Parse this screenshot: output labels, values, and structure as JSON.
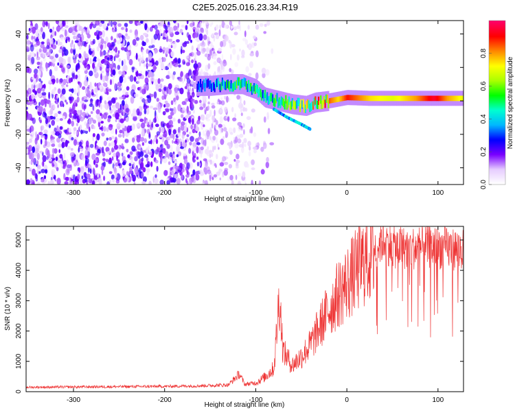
{
  "title": "C2E5.2025.016.23.34.R19",
  "chart_data": [
    {
      "type": "heatmap",
      "title": "C2E5.2025.016.23.34.R19",
      "xlabel": "Height of straight line (km)",
      "ylabel": "Frequency (Hz)",
      "xlim": [
        -352,
        128
      ],
      "ylim": [
        -50,
        48
      ],
      "x_ticks": [
        -300,
        -200,
        -100,
        0,
        100
      ],
      "y_ticks": [
        -40,
        -20,
        0,
        20,
        40
      ],
      "grid": false,
      "colorbar": {
        "label": "Normalized spectral amplitude",
        "range": [
          0,
          1
        ],
        "ticks": [
          0.0,
          0.2,
          0.4,
          0.6,
          0.8
        ],
        "colormap": [
          "#ffffff",
          "#e6ccff",
          "#7a00ff",
          "#0000ff",
          "#00b7ff",
          "#00ffd0",
          "#00ff00",
          "#aaff00",
          "#ffff00",
          "#ff8800",
          "#ff0000",
          "#ff0066"
        ]
      },
      "features": {
        "noise_region_x": [
          -352,
          -100
        ],
        "trace_points": [
          {
            "x": -165,
            "y": 9,
            "v": 0.3
          },
          {
            "x": -150,
            "y": 9,
            "v": 0.35
          },
          {
            "x": -130,
            "y": 10,
            "v": 0.45
          },
          {
            "x": -115,
            "y": 10,
            "v": 0.5
          },
          {
            "x": -100,
            "y": 7,
            "v": 0.45
          },
          {
            "x": -90,
            "y": 2,
            "v": 0.4
          },
          {
            "x": -75,
            "y": 0,
            "v": 0.5
          },
          {
            "x": -60,
            "y": -2,
            "v": 0.55
          },
          {
            "x": -45,
            "y": -3,
            "v": 0.6
          },
          {
            "x": -35,
            "y": -1,
            "v": 0.7
          },
          {
            "x": -20,
            "y": 0,
            "v": 0.85
          },
          {
            "x": -10,
            "y": 1,
            "v": 0.75
          },
          {
            "x": 0,
            "y": 2,
            "v": 0.9
          },
          {
            "x": 25,
            "y": 1.5,
            "v": 0.75
          },
          {
            "x": 50,
            "y": 1.5,
            "v": 0.7
          },
          {
            "x": 75,
            "y": 1.5,
            "v": 0.8
          },
          {
            "x": 95,
            "y": 1.5,
            "v": 0.95
          },
          {
            "x": 110,
            "y": 1.5,
            "v": 0.8
          },
          {
            "x": 128,
            "y": 1.5,
            "v": 0.7
          }
        ],
        "lower_branch": [
          {
            "x": -80,
            "y": -5
          },
          {
            "x": -65,
            "y": -10
          },
          {
            "x": -50,
            "y": -14
          },
          {
            "x": -40,
            "y": -17
          }
        ]
      }
    },
    {
      "type": "line",
      "xlabel": "Height of straight line (km)",
      "ylabel": "SNR (10 * v/v)",
      "xlim": [
        -352,
        128
      ],
      "ylim": [
        0,
        5450
      ],
      "x_ticks": [
        -300,
        -200,
        -100,
        0,
        100
      ],
      "y_ticks": [
        0,
        1000,
        2000,
        3000,
        4000,
        5000
      ],
      "grid": false,
      "series": [
        {
          "color": "#ee3333",
          "values": [
            {
              "x": -352,
              "y": 150
            },
            {
              "x": -300,
              "y": 160
            },
            {
              "x": -250,
              "y": 170
            },
            {
              "x": -200,
              "y": 180
            },
            {
              "x": -160,
              "y": 200
            },
            {
              "x": -130,
              "y": 230
            },
            {
              "x": -118,
              "y": 600
            },
            {
              "x": -112,
              "y": 250
            },
            {
              "x": -100,
              "y": 300
            },
            {
              "x": -90,
              "y": 500
            },
            {
              "x": -80,
              "y": 800
            },
            {
              "x": -74,
              "y": 3300
            },
            {
              "x": -70,
              "y": 1400
            },
            {
              "x": -60,
              "y": 900
            },
            {
              "x": -50,
              "y": 1200
            },
            {
              "x": -40,
              "y": 1600
            },
            {
              "x": -30,
              "y": 2200
            },
            {
              "x": -20,
              "y": 2800
            },
            {
              "x": -10,
              "y": 3300
            },
            {
              "x": 0,
              "y": 3700
            },
            {
              "x": 10,
              "y": 4100
            },
            {
              "x": 20,
              "y": 4500
            },
            {
              "x": 30,
              "y": 4800
            },
            {
              "x": 40,
              "y": 5100
            },
            {
              "x": 50,
              "y": 4850
            },
            {
              "x": 70,
              "y": 4800
            },
            {
              "x": 90,
              "y": 4850
            },
            {
              "x": 110,
              "y": 4800
            },
            {
              "x": 128,
              "y": 4750
            }
          ]
        }
      ]
    }
  ]
}
